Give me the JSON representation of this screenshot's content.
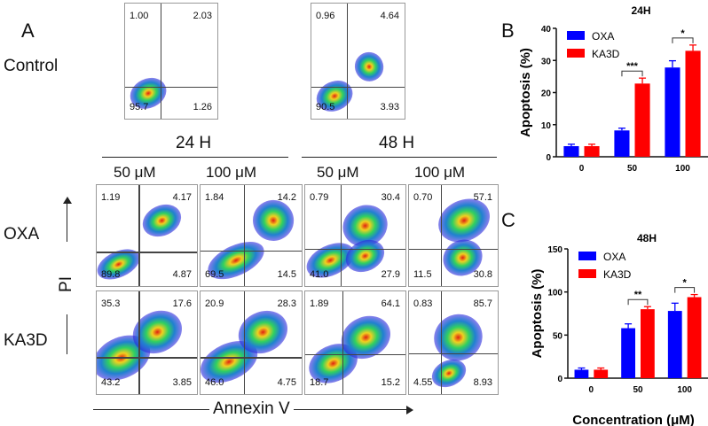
{
  "panel_labels": {
    "a": "A",
    "b": "B",
    "c": "C"
  },
  "row_labels": {
    "control": "Control",
    "oxa": "OXA",
    "ka3d": "KA3D"
  },
  "time_headers": [
    "24 H",
    "48 H"
  ],
  "dose_headers": [
    "50 μM",
    "100 μM",
    "50 μM",
    "100 μM"
  ],
  "axis_labels": {
    "y": "PI",
    "x": "Annexin V"
  },
  "flow_plots": {
    "control": [
      {
        "ul": "1.00",
        "ur": "2.03",
        "ll": "95.7",
        "lr": "1.26"
      },
      {
        "ul": "0.96",
        "ur": "4.64",
        "ll": "90.5",
        "lr": "3.93"
      }
    ],
    "oxa": [
      {
        "ul": "1.19",
        "ur": "4.17",
        "ll": "89.8",
        "lr": "4.87"
      },
      {
        "ul": "1.84",
        "ur": "14.2",
        "ll": "69.5",
        "lr": "14.5"
      },
      {
        "ul": "0.79",
        "ur": "30.4",
        "ll": "41.0",
        "lr": "27.9"
      },
      {
        "ul": "0.70",
        "ur": "57.1",
        "ll": "11.5",
        "lr": "30.8"
      }
    ],
    "ka3d": [
      {
        "ul": "35.3",
        "ur": "17.6",
        "ll": "43.2",
        "lr": "3.85"
      },
      {
        "ul": "20.9",
        "ur": "28.3",
        "ll": "46.0",
        "lr": "4.75"
      },
      {
        "ul": "1.89",
        "ur": "64.1",
        "ll": "18.7",
        "lr": "15.2"
      },
      {
        "ul": "0.83",
        "ur": "85.7",
        "ll": "4.55",
        "lr": "8.93"
      }
    ]
  },
  "colors": {
    "oxa": "#0000ff",
    "ka3d": "#ff0000"
  },
  "chart_data": [
    {
      "type": "bar",
      "title": "24H",
      "categories": [
        "0",
        "50",
        "100"
      ],
      "ylabel": "Apoptosis  (%)",
      "xlabel": "",
      "ylim": [
        0,
        40
      ],
      "yticks": [
        0,
        10,
        20,
        30,
        40
      ],
      "series": [
        {
          "name": "OXA",
          "values": [
            3.3,
            8.2,
            27.8
          ],
          "errors": [
            0.6,
            0.7,
            2.1
          ]
        },
        {
          "name": "KA3D",
          "values": [
            3.3,
            22.8,
            33.0
          ],
          "errors": [
            0.6,
            1.7,
            1.8
          ]
        }
      ],
      "significance": [
        null,
        "***",
        "*"
      ],
      "legend": "top-left"
    },
    {
      "type": "bar",
      "title": "48H",
      "categories": [
        "0",
        "50",
        "100"
      ],
      "ylabel": "Apoptosis  (%)",
      "xlabel": "Concentration (μM)",
      "ylim": [
        0,
        150
      ],
      "yticks": [
        0,
        50,
        100,
        150
      ],
      "series": [
        {
          "name": "OXA",
          "values": [
            9.8,
            58,
            78
          ],
          "errors": [
            2,
            5,
            9
          ]
        },
        {
          "name": "KA3D",
          "values": [
            9.8,
            80,
            94
          ],
          "errors": [
            2,
            3,
            3
          ]
        }
      ],
      "significance": [
        null,
        "**",
        "*"
      ],
      "legend": "top-left"
    }
  ]
}
